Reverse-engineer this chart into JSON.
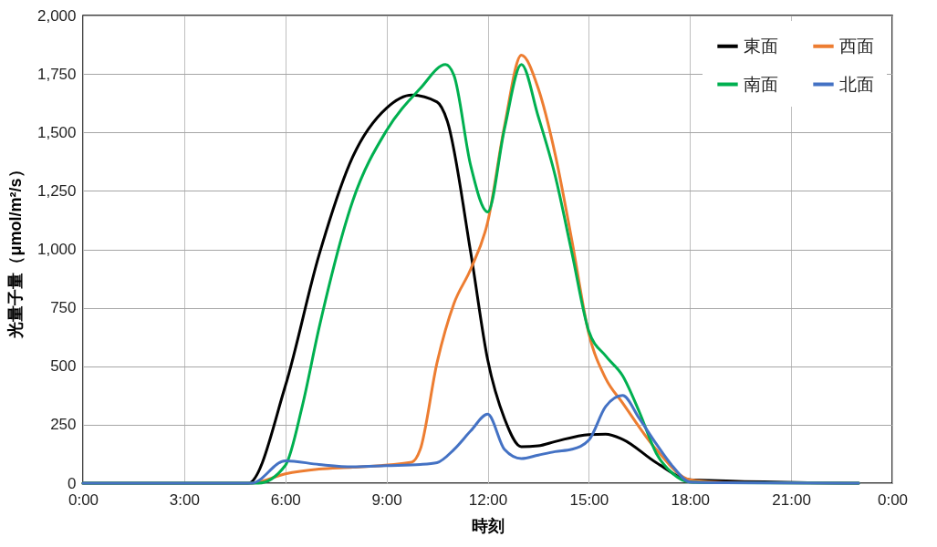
{
  "chart_data": {
    "type": "line",
    "xlabel": "時刻",
    "ylabel": "光量子量（μmol/m²/s）",
    "xlim": [
      0,
      24
    ],
    "xticks": [
      {
        "value": 0,
        "label": "0:00"
      },
      {
        "value": 3,
        "label": "3:00"
      },
      {
        "value": 6,
        "label": "6:00"
      },
      {
        "value": 9,
        "label": "9:00"
      },
      {
        "value": 12,
        "label": "12:00"
      },
      {
        "value": 15,
        "label": "15:00"
      },
      {
        "value": 18,
        "label": "18:00"
      },
      {
        "value": 21,
        "label": "21:00"
      },
      {
        "value": 24,
        "label": "0:00"
      }
    ],
    "ylim": [
      0,
      2000
    ],
    "yticks": [
      {
        "value": 0,
        "label": "0"
      },
      {
        "value": 250,
        "label": "250"
      },
      {
        "value": 500,
        "label": "500"
      },
      {
        "value": 750,
        "label": "750"
      },
      {
        "value": 1000,
        "label": "1,000"
      },
      {
        "value": 1250,
        "label": "1,250"
      },
      {
        "value": 1500,
        "label": "1,500"
      },
      {
        "value": 1750,
        "label": "1,750"
      },
      {
        "value": 2000,
        "label": "2,000"
      }
    ],
    "grid": true,
    "legend": "top right",
    "marker": "none",
    "line_style": "solid",
    "series": [
      {
        "name": "東面",
        "color": "#000000",
        "x": [
          0,
          3,
          4.9,
          6,
          7,
          8,
          9,
          9.75,
          10.5,
          10.8,
          11.5,
          12,
          12.5,
          13,
          13.5,
          14,
          15,
          15.5,
          16,
          17,
          18,
          23
        ],
        "values": [
          0,
          0,
          0,
          416,
          976,
          1396,
          1604,
          1660,
          1630,
          1550,
          984,
          528,
          276,
          156,
          160,
          178,
          208,
          210,
          188,
          88,
          15,
          0
        ]
      },
      {
        "name": "西面",
        "color": "#ed7d31",
        "x": [
          0,
          3,
          5,
          6,
          7,
          8,
          9.75,
          10,
          10.5,
          11,
          11.5,
          12,
          12.5,
          13,
          13.5,
          14,
          14.5,
          15,
          15.5,
          16,
          17,
          18,
          19,
          23
        ],
        "values": [
          0,
          0,
          0,
          40,
          60,
          68,
          90,
          144,
          516,
          768,
          916,
          1116,
          1528,
          1830,
          1688,
          1408,
          1036,
          640,
          448,
          344,
          144,
          15,
          3,
          0
        ]
      },
      {
        "name": "南面",
        "color": "#00b050",
        "x": [
          0,
          3,
          5.2,
          6,
          6.5,
          7,
          8,
          9,
          10,
          10.75,
          11,
          11.5,
          12,
          12.5,
          13,
          13.5,
          14,
          14.5,
          15,
          15.5,
          16,
          16.5,
          17,
          17.5,
          18,
          19,
          23
        ],
        "values": [
          0,
          0,
          0,
          76,
          328,
          664,
          1208,
          1508,
          1688,
          1790,
          1744,
          1356,
          1160,
          1516,
          1790,
          1568,
          1316,
          984,
          650,
          544,
          460,
          304,
          128,
          40,
          5,
          2,
          0
        ]
      },
      {
        "name": "北面",
        "color": "#4472c4",
        "x": [
          0,
          3,
          5,
          6,
          7,
          8,
          9,
          10,
          10.5,
          11,
          11.5,
          12,
          12.5,
          13,
          13.5,
          14,
          14.5,
          15,
          15.5,
          16,
          16.5,
          17,
          17.5,
          18,
          19,
          23
        ],
        "values": [
          0,
          0,
          0,
          96,
          80,
          70,
          75,
          80,
          88,
          144,
          224,
          295,
          144,
          105,
          120,
          135,
          145,
          184,
          328,
          375,
          276,
          168,
          70,
          5,
          2,
          0
        ]
      }
    ]
  }
}
